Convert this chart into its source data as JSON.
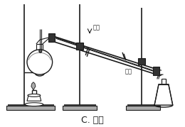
{
  "title": "C. 蒸馏",
  "title_fontsize": 9,
  "bg_color": "#ffffff",
  "line_color": "#1a1a1a",
  "label_jinshui": "进水",
  "label_chushui": "出水",
  "figsize": [
    2.6,
    1.79
  ],
  "dpi": 100
}
